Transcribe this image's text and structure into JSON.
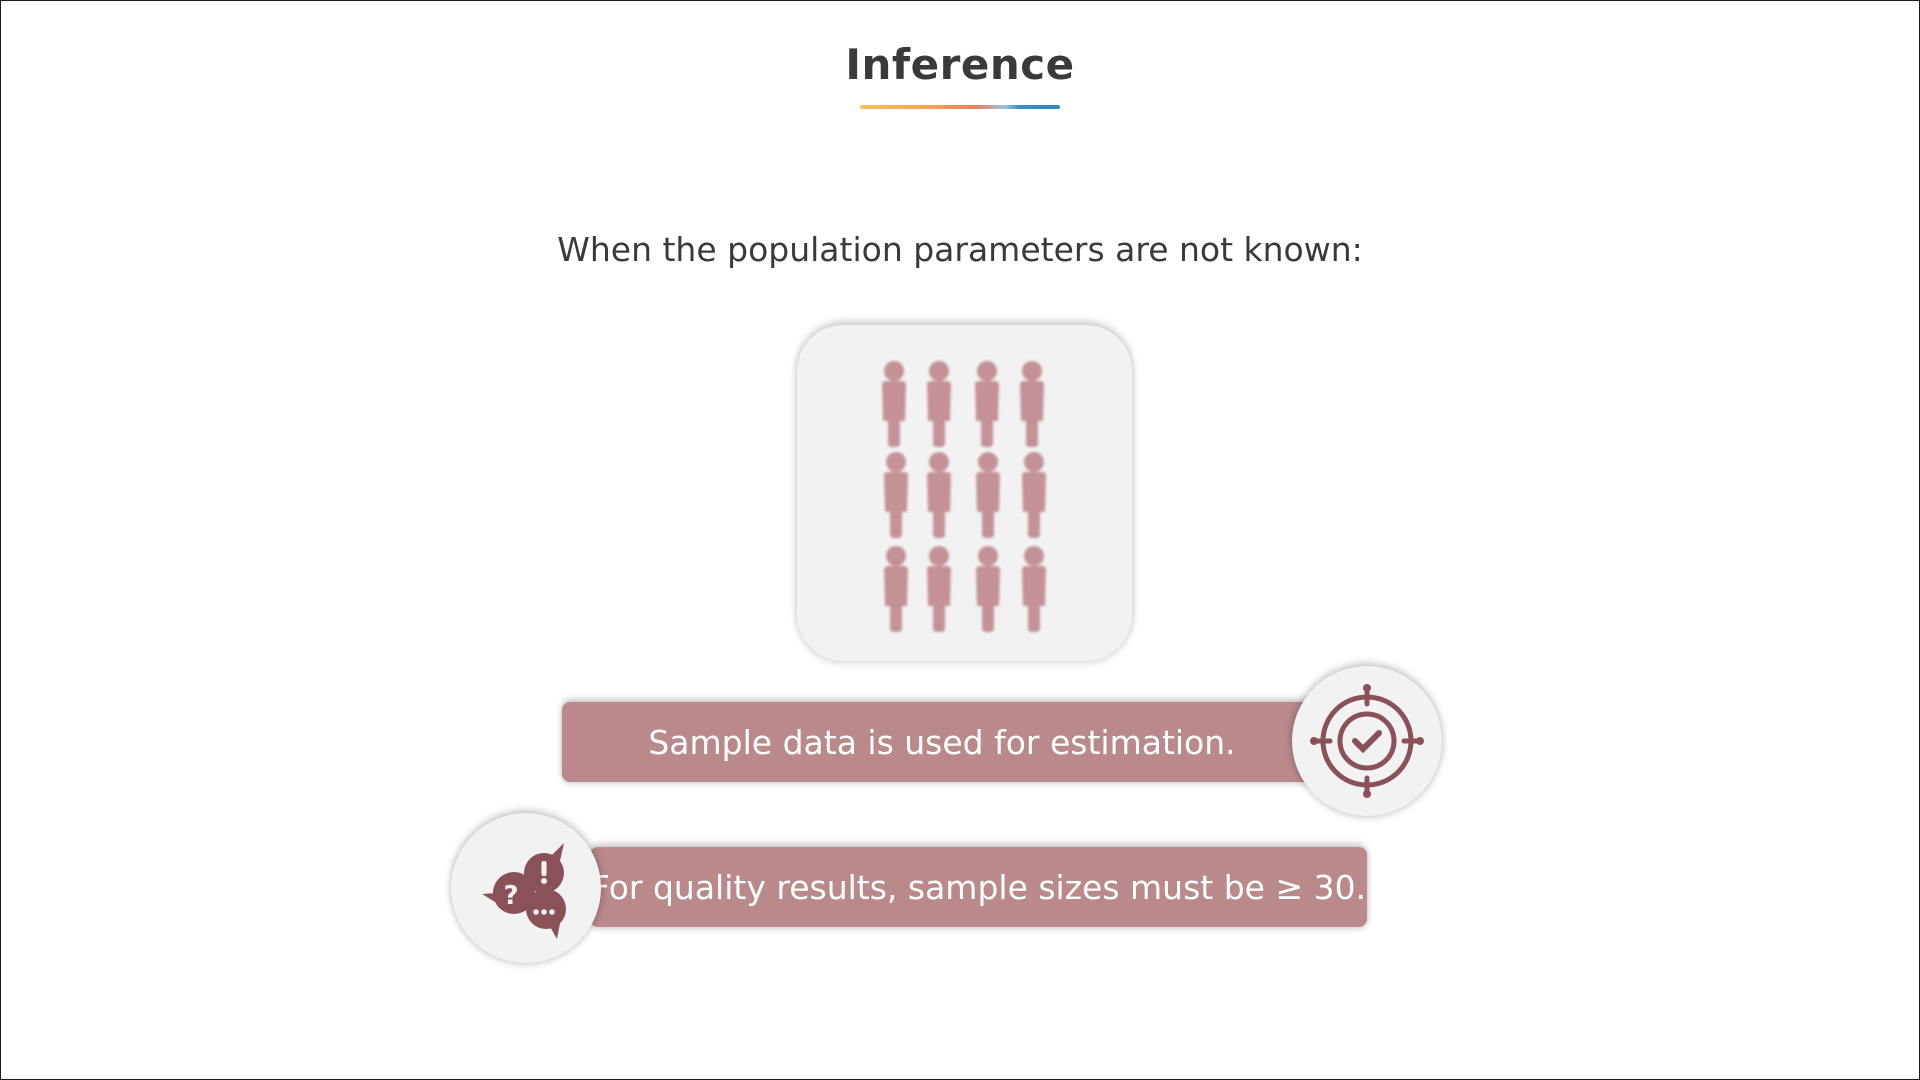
{
  "slide": {
    "title": "Inference",
    "subtitle": "When the population parameters are not known:",
    "point_one": "Sample data is used for estimation.",
    "point_two": "For quality results, sample sizes must be ≥ 30."
  },
  "icons": {
    "population": "people-grid-icon",
    "point_one": "target-check-icon",
    "point_two": "speech-bubbles-icon"
  },
  "colors": {
    "accent": "#b9898c",
    "icon": "#8a5158",
    "card": "#f2f2f2",
    "text": "#3a3a3a",
    "underline": [
      "#f6c15a",
      "#ef7f5c",
      "#3a8fc7"
    ]
  }
}
